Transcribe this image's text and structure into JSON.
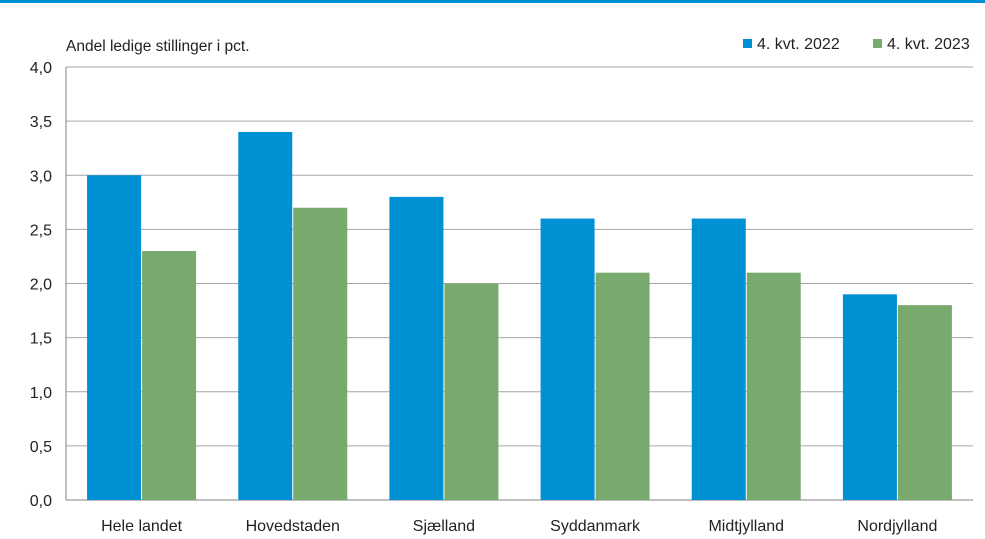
{
  "chart_data": {
    "type": "bar",
    "title": "",
    "ylabel": "Andel ledige stillinger i pct.",
    "xlabel": "",
    "categories": [
      "Hele landet",
      "Hovedstaden",
      "Sjælland",
      "Syddanmark",
      "Midtjylland",
      "Nordjylland"
    ],
    "series": [
      {
        "name": "4. kvt. 2022",
        "color": "#0090d4",
        "values": [
          3.0,
          3.4,
          2.8,
          2.6,
          2.6,
          1.9
        ]
      },
      {
        "name": "4. kvt. 2023",
        "color": "#78aa6e",
        "values": [
          2.3,
          2.7,
          2.0,
          2.1,
          2.1,
          1.8
        ]
      }
    ],
    "ylim": [
      0,
      4.0
    ],
    "yticks": [
      "0,0",
      "0,5",
      "1,0",
      "1,5",
      "2,0",
      "2,5",
      "3,0",
      "3,5",
      "4,0"
    ],
    "grid": true,
    "legend_position": "top-right"
  },
  "colors": {
    "top_rule": "#0090d4",
    "grid": "#a6a6a6",
    "axis": "#808080"
  }
}
